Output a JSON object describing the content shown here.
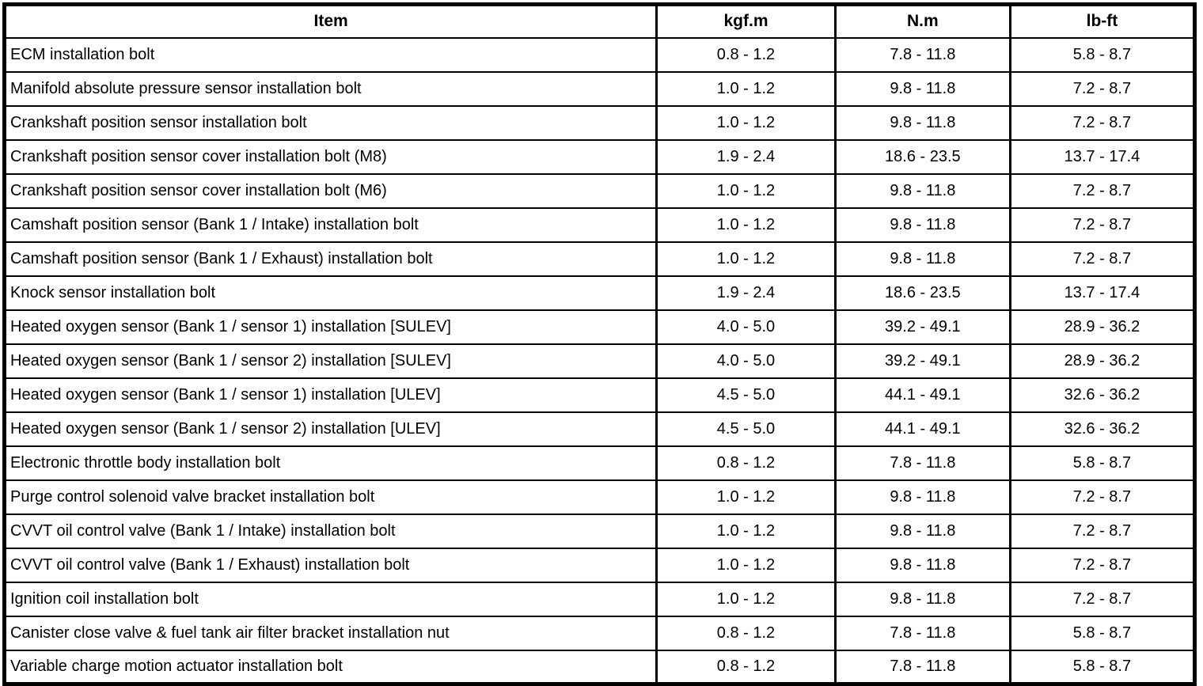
{
  "table": {
    "columns": [
      "Item",
      "kgf.m",
      "N.m",
      "lb-ft"
    ],
    "rows": [
      {
        "item": "ECM installation bolt",
        "kgf_m": "0.8 - 1.2",
        "n_m": "7.8 - 11.8",
        "lb_ft": "5.8 - 8.7"
      },
      {
        "item": "Manifold absolute pressure sensor installation bolt",
        "kgf_m": "1.0 - 1.2",
        "n_m": "9.8 - 11.8",
        "lb_ft": "7.2 - 8.7"
      },
      {
        "item": "Crankshaft position sensor installation bolt",
        "kgf_m": "1.0 - 1.2",
        "n_m": "9.8 - 11.8",
        "lb_ft": "7.2 - 8.7"
      },
      {
        "item": "Crankshaft position sensor cover installation bolt (M8)",
        "kgf_m": "1.9 - 2.4",
        "n_m": "18.6 - 23.5",
        "lb_ft": "13.7 - 17.4"
      },
      {
        "item": "Crankshaft position sensor cover installation bolt (M6)",
        "kgf_m": "1.0 - 1.2",
        "n_m": "9.8 - 11.8",
        "lb_ft": "7.2 - 8.7"
      },
      {
        "item": "Camshaft position sensor (Bank 1 / Intake) installation bolt",
        "kgf_m": "1.0 - 1.2",
        "n_m": "9.8 - 11.8",
        "lb_ft": "7.2 - 8.7"
      },
      {
        "item": "Camshaft position sensor (Bank 1 / Exhaust) installation bolt",
        "kgf_m": "1.0 - 1.2",
        "n_m": "9.8 - 11.8",
        "lb_ft": "7.2 - 8.7"
      },
      {
        "item": "Knock sensor installation bolt",
        "kgf_m": "1.9 - 2.4",
        "n_m": "18.6 - 23.5",
        "lb_ft": "13.7 - 17.4"
      },
      {
        "item": "Heated oxygen sensor (Bank 1 / sensor 1) installation [SULEV]",
        "kgf_m": "4.0 - 5.0",
        "n_m": "39.2 - 49.1",
        "lb_ft": "28.9 - 36.2"
      },
      {
        "item": "Heated oxygen sensor (Bank 1 / sensor 2) installation [SULEV]",
        "kgf_m": "4.0 - 5.0",
        "n_m": "39.2 - 49.1",
        "lb_ft": "28.9 - 36.2"
      },
      {
        "item": "Heated oxygen sensor (Bank 1 / sensor 1) installation [ULEV]",
        "kgf_m": "4.5 - 5.0",
        "n_m": "44.1 - 49.1",
        "lb_ft": "32.6 - 36.2"
      },
      {
        "item": "Heated oxygen sensor (Bank 1 / sensor 2) installation [ULEV]",
        "kgf_m": "4.5 - 5.0",
        "n_m": "44.1 - 49.1",
        "lb_ft": "32.6 - 36.2"
      },
      {
        "item": "Electronic throttle body installation bolt",
        "kgf_m": "0.8 - 1.2",
        "n_m": "7.8 - 11.8",
        "lb_ft": "5.8 - 8.7"
      },
      {
        "item": "Purge control solenoid valve bracket installation bolt",
        "kgf_m": "1.0 - 1.2",
        "n_m": "9.8 - 11.8",
        "lb_ft": "7.2 - 8.7"
      },
      {
        "item": "CVVT oil control valve (Bank 1 / Intake) installation bolt",
        "kgf_m": "1.0 - 1.2",
        "n_m": "9.8 - 11.8",
        "lb_ft": "7.2 - 8.7"
      },
      {
        "item": "CVVT oil control valve (Bank 1 / Exhaust) installation bolt",
        "kgf_m": "1.0 - 1.2",
        "n_m": "9.8 - 11.8",
        "lb_ft": "7.2 - 8.7"
      },
      {
        "item": "Ignition coil installation bolt",
        "kgf_m": "1.0 - 1.2",
        "n_m": "9.8 - 11.8",
        "lb_ft": "7.2 - 8.7"
      },
      {
        "item": "Canister close valve & fuel tank air filter bracket installation nut",
        "kgf_m": "0.8 - 1.2",
        "n_m": "7.8 - 11.8",
        "lb_ft": "5.8 - 8.7"
      },
      {
        "item": "Variable charge motion actuator installation bolt",
        "kgf_m": "0.8 - 1.2",
        "n_m": "7.8 - 11.8",
        "lb_ft": "5.8 - 8.7"
      }
    ]
  },
  "colors": {
    "border": "#000000",
    "background": "#ffffff",
    "text": "#000000"
  }
}
